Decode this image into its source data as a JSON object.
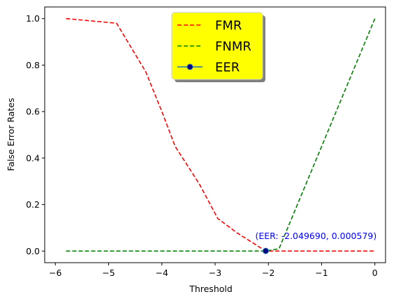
{
  "chart_data": {
    "type": "line",
    "xlabel": "Threshold",
    "ylabel": "False Error Rates",
    "xlim": [
      -6.2,
      0.2
    ],
    "ylim": [
      -0.05,
      1.05
    ],
    "x_ticks": [
      -6,
      -5,
      -4,
      -3,
      -2,
      -1,
      0
    ],
    "y_ticks": [
      0.0,
      0.2,
      0.4,
      0.6,
      0.8,
      1.0
    ],
    "x_tick_labels": [
      "−6",
      "−5",
      "−4",
      "−3",
      "−2",
      "−1",
      "0"
    ],
    "y_tick_labels": [
      "0.0",
      "0.2",
      "0.4",
      "0.6",
      "0.8",
      "1.0"
    ],
    "series": [
      {
        "name": "FMR",
        "color": "#ff0000",
        "style": "dashed",
        "x": [
          -5.8,
          -4.85,
          -4.3,
          -4.0,
          -3.75,
          -3.3,
          -2.95,
          -2.6,
          -2.05,
          0.0
        ],
        "y": [
          1.0,
          0.98,
          0.77,
          0.6,
          0.45,
          0.29,
          0.14,
          0.08,
          0.0,
          0.0
        ]
      },
      {
        "name": "FNMR",
        "color": "#008000",
        "style": "dashed",
        "x": [
          -5.8,
          -2.05,
          -1.8,
          0.0
        ],
        "y": [
          0.0,
          0.0,
          0.01,
          1.0
        ]
      }
    ],
    "eer": {
      "name": "EER",
      "x": -2.04969,
      "y": 0.000579,
      "line_color": "#1f77b4",
      "marker_color": "#000080",
      "annotation": "(EER: -2.049690, 0.000579)",
      "annotation_color": "#0000ff"
    },
    "legend": {
      "position": "upper-center",
      "background": "#ffff00",
      "shadow": true
    },
    "grid": false
  }
}
